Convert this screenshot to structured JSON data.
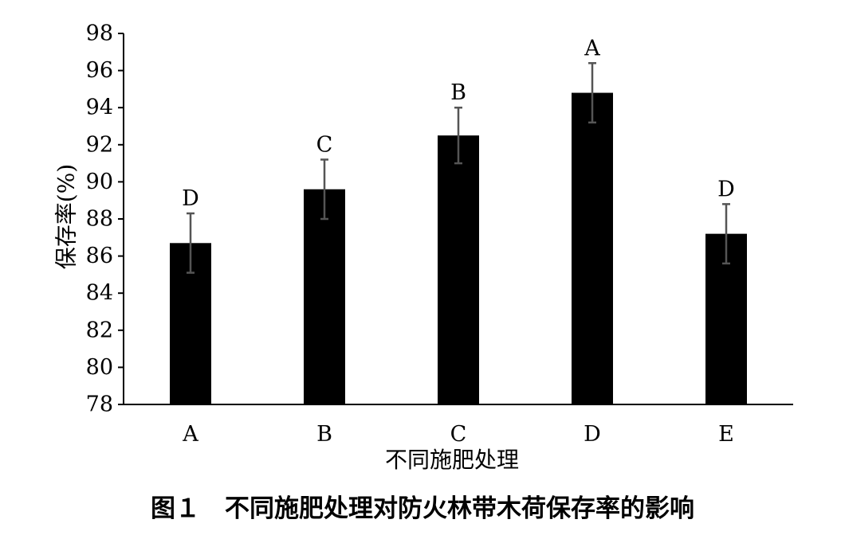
{
  "chart_data": {
    "type": "bar",
    "categories": [
      "A",
      "B",
      "C",
      "D",
      "E"
    ],
    "values": [
      86.7,
      89.6,
      92.5,
      94.8,
      87.2
    ],
    "errors": [
      1.6,
      1.6,
      1.5,
      1.6,
      1.6
    ],
    "significance": [
      "D",
      "C",
      "B",
      "A",
      "D"
    ],
    "xlabel": "不同施肥处理",
    "ylabel": "保存率(%)",
    "ylim": [
      78,
      98
    ],
    "yticks": [
      78,
      80,
      82,
      84,
      86,
      88,
      90,
      92,
      94,
      96,
      98
    ],
    "grid": false,
    "bar_color": "#000000",
    "error_color": "#555555"
  },
  "caption": "图１　不同施肥处理对防火林带木荷保存率的影响"
}
